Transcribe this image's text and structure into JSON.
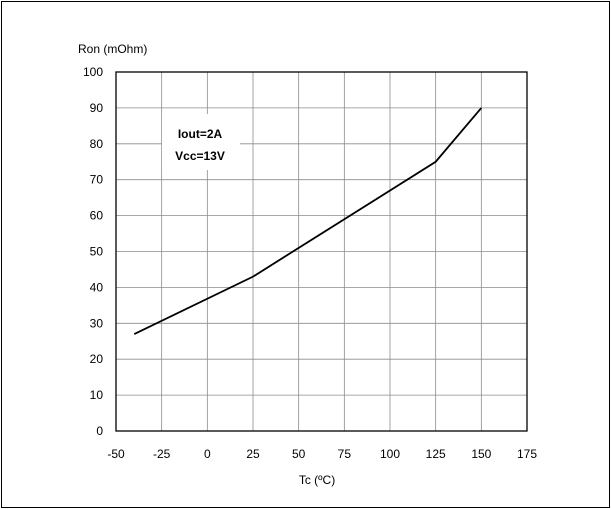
{
  "chart_data": {
    "type": "line",
    "title": "",
    "xlabel": "Tc (ºC)",
    "ylabel": "Ron (mOhm)",
    "xlim": [
      -50,
      175
    ],
    "ylim": [
      0,
      100
    ],
    "x_ticks": [
      -50,
      -25,
      0,
      25,
      50,
      75,
      100,
      125,
      150,
      175
    ],
    "y_ticks": [
      0,
      10,
      20,
      30,
      40,
      50,
      60,
      70,
      80,
      90,
      100
    ],
    "x_tick_labels": [
      "-50",
      "-25",
      "0",
      "25",
      "50",
      "75",
      "100",
      "125",
      "150",
      "175"
    ],
    "y_tick_labels": [
      "0",
      "10",
      "20",
      "30",
      "40",
      "50",
      "60",
      "70",
      "80",
      "90",
      "100"
    ],
    "grid": true,
    "series": [
      {
        "x": [
          -40,
          25,
          125,
          150
        ],
        "y": [
          27,
          43,
          75,
          90
        ],
        "color": "#000000"
      }
    ],
    "annotation": {
      "lines": [
        "Iout=2A",
        "Vcc=13V"
      ]
    }
  }
}
